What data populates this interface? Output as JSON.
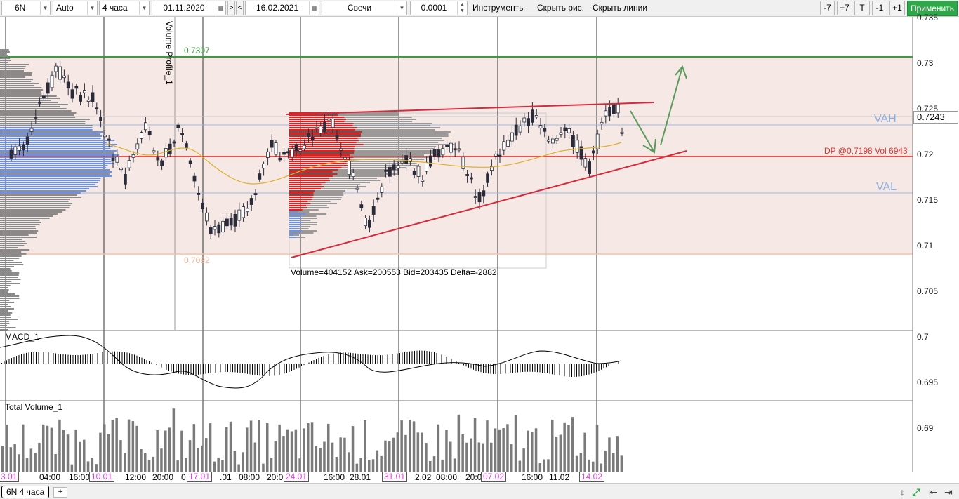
{
  "toolbar": {
    "symbol": "6N",
    "mode": "Auto",
    "timeframe": "4 часа",
    "date_from": "01.11.2020",
    "nav_right": ">",
    "nav_left": "<",
    "date_to": "16.02.2021",
    "chart_type": "Свечи",
    "tick_size": "0.0001",
    "instruments": "Инструменты",
    "hide_drawings": "Скрыть рис.",
    "hide_lines": "Скрыть линии",
    "minus7": "-7",
    "plus7": "+7",
    "t": "T",
    "minus1": "-1",
    "plus1": "+1",
    "apply": "Применить"
  },
  "chart": {
    "price_labels": [
      "0.735",
      "0.73",
      "0.725",
      "0.72",
      "0.715",
      "0.71",
      "0.705",
      "0.7",
      "0.695",
      "0.69"
    ],
    "current_price": "0.7243",
    "vah": "VAH",
    "val": "VAL",
    "dp_label": "DP @0,7198 Vol 6943",
    "level_high": "0,7307",
    "level_low": "0,7092",
    "stats": "Volume=404152  Ask=200553  Bid=203435  Delta=-2882",
    "volume_profile_label": "Volume Profile_1",
    "macd_title": "MACD_1",
    "volume_title": "Total Volume_1",
    "colors": {
      "bull": "#ffffff",
      "bear": "#2b2b3a",
      "resistance": "#d62a3c",
      "level_green": "#3f9a3f",
      "profile_blue": "#6f8fe0",
      "profile_red": "#e02020",
      "value_area": "#f6e8e4",
      "arrow": "#5a9a5a"
    }
  },
  "time_axis": {
    "labels": [
      {
        "text": "3.01",
        "date": true
      },
      {
        "text": "04:00",
        "date": false
      },
      {
        "text": "16:00",
        "date": false
      },
      {
        "text": "10.01",
        "date": true
      },
      {
        "text": "12:00",
        "date": false
      },
      {
        "text": "20:00",
        "date": false
      },
      {
        "text": "0",
        "date": false
      },
      {
        "text": "17.01",
        "date": true
      },
      {
        "text": ".01",
        "date": false
      },
      {
        "text": "08:00",
        "date": false
      },
      {
        "text": "20:0",
        "date": false
      },
      {
        "text": "24.01",
        "date": true
      },
      {
        "text": "16:00",
        "date": false
      },
      {
        "text": "28.01",
        "date": false
      },
      {
        "text": "31.01",
        "date": true
      },
      {
        "text": "2.02",
        "date": false
      },
      {
        "text": "08:00",
        "date": false
      },
      {
        "text": "20:0",
        "date": false
      },
      {
        "text": "07.02",
        "date": true
      },
      {
        "text": "16:00",
        "date": false
      },
      {
        "text": "11.02",
        "date": false
      },
      {
        "text": "14.02",
        "date": true
      }
    ]
  },
  "tabs": {
    "active": "6N 4 часа",
    "add": "+"
  }
}
